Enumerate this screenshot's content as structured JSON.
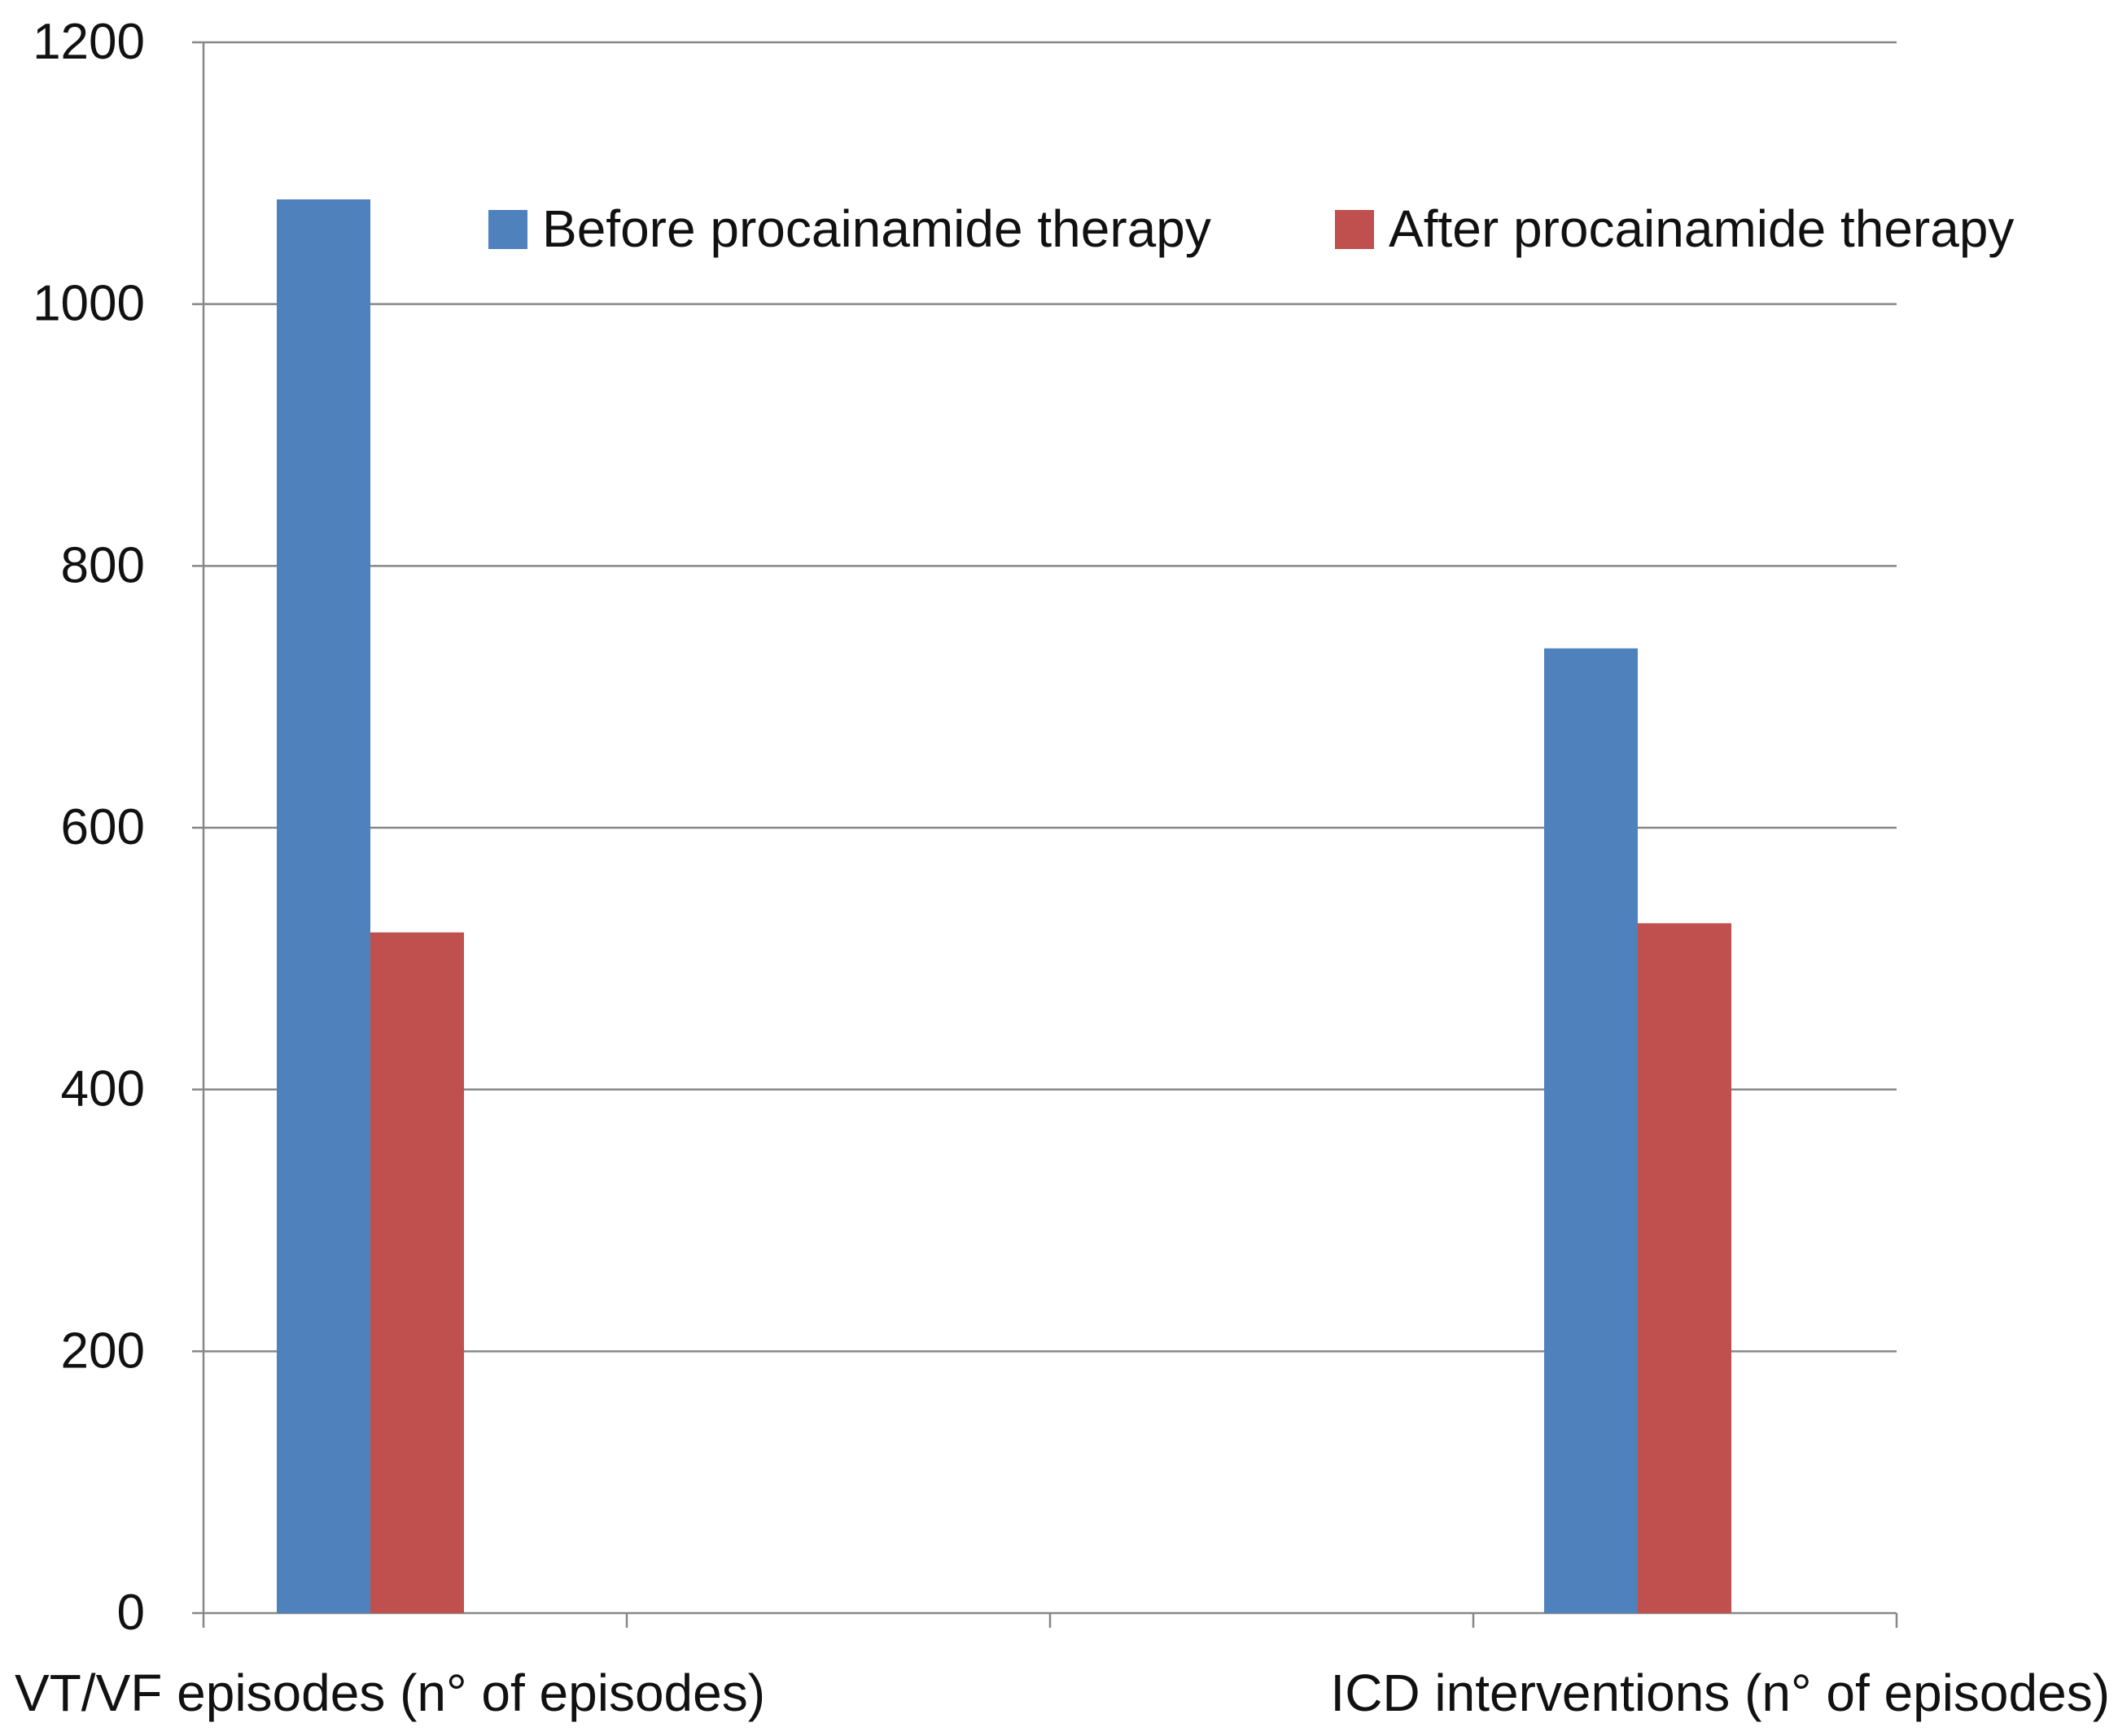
{
  "chart_data": {
    "type": "bar",
    "title": "",
    "xlabel": "",
    "ylabel": "",
    "categories": [
      "VT/VF episodes (n° of episodes)",
      "ICD interventions (n° of episodes)"
    ],
    "series": [
      {
        "name": "Before procainamide therapy",
        "color": "#4F81BD",
        "values": [
          1080,
          737
        ]
      },
      {
        "name": "After procainamide therapy",
        "color": "#C0504D",
        "values": [
          520,
          527
        ]
      }
    ],
    "ylim": [
      0,
      1200
    ],
    "yticks": [
      0,
      200,
      400,
      600,
      800,
      1000,
      1200
    ],
    "grid": true,
    "legend_position": "top-right",
    "colors": {
      "axis": "#878787",
      "grid": "#878787",
      "text": "#111111"
    }
  }
}
